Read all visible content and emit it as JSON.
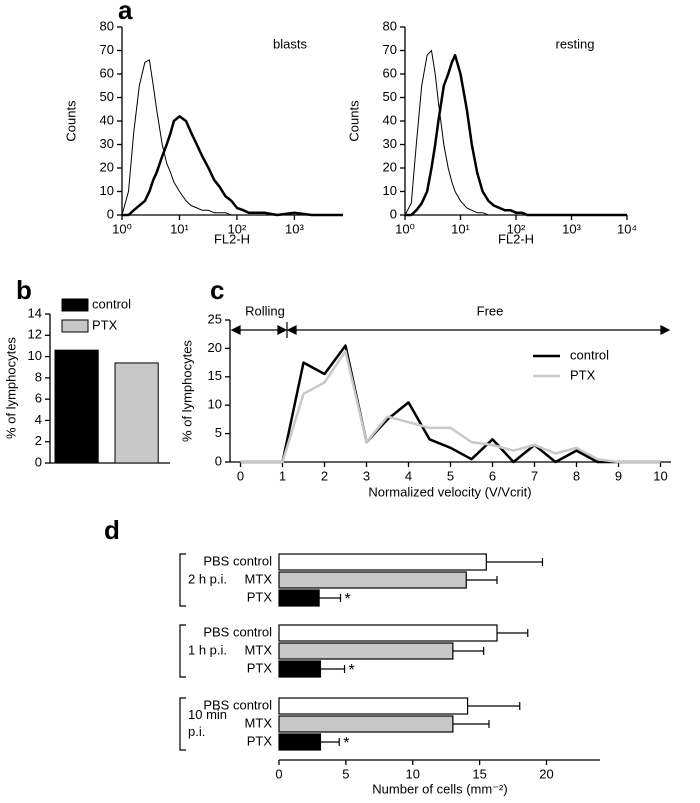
{
  "chart_data": [
    {
      "type": "line",
      "panel": "a",
      "title": "blasts",
      "xlabel": "FL2-H",
      "ylabel": "Counts",
      "log_x": true,
      "x": [
        1,
        1.3,
        1.6,
        2,
        2.5,
        3,
        3.5,
        4,
        5,
        6,
        7,
        8,
        10,
        13,
        16,
        20,
        25,
        32,
        40,
        50,
        63,
        80,
        100,
        130,
        160,
        200,
        300,
        500,
        1000,
        2000,
        7000
      ],
      "xlim": [
        1,
        7000
      ],
      "xticks": [
        {
          "value": 1,
          "label": "10⁰"
        },
        {
          "value": 10,
          "label": "10¹"
        },
        {
          "value": 100,
          "label": "10²"
        },
        {
          "value": 1000,
          "label": "10³"
        }
      ],
      "ylim": [
        0,
        80
      ],
      "yticks": [
        0,
        10,
        20,
        30,
        40,
        50,
        60,
        70,
        80
      ],
      "series": [
        {
          "color": "#000000",
          "line_width": 1,
          "values": [
            0,
            10,
            35,
            55,
            65,
            66,
            55,
            45,
            30,
            22,
            18,
            14,
            10,
            6,
            4,
            3,
            2,
            2,
            1,
            1,
            1,
            0,
            0,
            0,
            0,
            0,
            0,
            0,
            0,
            0,
            0
          ]
        },
        {
          "color": "#000000",
          "line_width": 2.5,
          "values": [
            0,
            0,
            2,
            4,
            6,
            10,
            15,
            18,
            25,
            30,
            35,
            40,
            42,
            40,
            35,
            30,
            25,
            20,
            15,
            12,
            8,
            6,
            3,
            2,
            1,
            1,
            1,
            0,
            1,
            0,
            0
          ]
        }
      ]
    },
    {
      "type": "line",
      "title": "resting",
      "xlabel": "FL2-H",
      "ylabel": "Counts",
      "log_x": true,
      "x": [
        1,
        1.3,
        1.6,
        2,
        2.5,
        3,
        3.5,
        4,
        5,
        6,
        7,
        8,
        10,
        13,
        16,
        20,
        25,
        32,
        40,
        50,
        63,
        80,
        100,
        130,
        160,
        200,
        300,
        500,
        1000,
        2000,
        10000
      ],
      "xlim": [
        1,
        10000
      ],
      "xticks": [
        {
          "value": 1,
          "label": "10⁰"
        },
        {
          "value": 10,
          "label": "10¹"
        },
        {
          "value": 100,
          "label": "10²"
        },
        {
          "value": 1000,
          "label": "10³"
        },
        {
          "value": 10000,
          "label": "10⁴"
        }
      ],
      "ylim": [
        0,
        80
      ],
      "yticks": [
        0,
        10,
        20,
        30,
        40,
        50,
        60,
        70,
        80
      ],
      "series": [
        {
          "color": "#000000",
          "line_width": 1,
          "values": [
            0,
            5,
            30,
            55,
            68,
            70,
            60,
            48,
            30,
            20,
            14,
            10,
            6,
            3,
            2,
            1,
            1,
            0,
            0,
            0,
            0,
            0,
            0,
            0,
            0,
            0,
            0,
            0,
            0,
            0,
            0
          ]
        },
        {
          "color": "#000000",
          "line_width": 2.5,
          "values": [
            0,
            0,
            2,
            5,
            10,
            20,
            30,
            40,
            55,
            60,
            65,
            68,
            60,
            45,
            30,
            18,
            10,
            6,
            4,
            3,
            2,
            2,
            1,
            1,
            0,
            0,
            0,
            0,
            0,
            0,
            0
          ]
        }
      ]
    },
    {
      "type": "bar",
      "panel": "b",
      "ylabel": "% of lymphocytes",
      "ylim": [
        0,
        14
      ],
      "yticks": [
        0,
        2,
        4,
        6,
        8,
        10,
        12,
        14
      ],
      "series": [
        {
          "name": "control",
          "color": "#000000",
          "values": [
            10.6
          ]
        },
        {
          "name": "PTX",
          "color": "#c8c8c8",
          "values": [
            9.4
          ]
        }
      ]
    },
    {
      "type": "line",
      "panel": "c",
      "ylabel": "% of lymphocytes",
      "xlabel": "Normalized velocity (V/Vcrit)",
      "annotations": [
        "Rolling",
        "Free"
      ],
      "legend": "right",
      "x": [
        0,
        1,
        1.5,
        2,
        2.5,
        3,
        3.5,
        4,
        4.5,
        5,
        5.5,
        6,
        6.5,
        7,
        7.5,
        8,
        8.5,
        9,
        10
      ],
      "xlim": [
        -0.25,
        10.25
      ],
      "xticks": [
        0,
        1,
        2,
        3,
        4,
        5,
        6,
        7,
        8,
        9,
        10
      ],
      "ylim": [
        0,
        25
      ],
      "yticks": [
        0,
        5,
        10,
        15,
        20,
        25
      ],
      "series": [
        {
          "name": "control",
          "color": "#000000",
          "line_width": 2.5,
          "values": [
            0,
            0,
            17.5,
            15.5,
            20.5,
            3.5,
            7.5,
            10.5,
            4,
            2.5,
            0.5,
            4,
            0,
            3,
            0,
            2,
            0,
            0,
            0
          ]
        },
        {
          "name": "PTX",
          "color": "#c8c8c8",
          "line_width": 2.5,
          "values": [
            0,
            0,
            12,
            14,
            19.5,
            3.5,
            8,
            7,
            6,
            6,
            3.5,
            3,
            2,
            3,
            1.5,
            2.5,
            0.5,
            0,
            0
          ]
        }
      ]
    },
    {
      "type": "hbar",
      "panel": "d",
      "xlabel": "Number of cells (mm⁻²)",
      "xlim": [
        0,
        24
      ],
      "xticks": [
        0,
        5,
        10,
        15,
        20
      ],
      "colors": [
        "#ffffff",
        "#c8c8c8",
        "#000000"
      ],
      "groups": [
        {
          "label": [
            "2 h p.i."
          ],
          "categories": [
            "PBS control",
            "MTX",
            "PTX"
          ],
          "values": [
            15.5,
            14,
            3
          ],
          "errors": [
            4.2,
            2.3,
            1.6
          ],
          "significance": "*"
        },
        {
          "label": [
            "1 h p.i."
          ],
          "categories": [
            "PBS control",
            "MTX",
            "PTX"
          ],
          "values": [
            16.3,
            13,
            3.1
          ],
          "errors": [
            2.3,
            2.3,
            1.8
          ],
          "significance": "*"
        },
        {
          "label": [
            "10 min",
            "p.i."
          ],
          "categories": [
            "PBS control",
            "MTX",
            "PTX"
          ],
          "values": [
            14.1,
            13,
            3.1
          ],
          "errors": [
            3.9,
            2.7,
            1.4
          ],
          "significance": "*"
        }
      ]
    }
  ]
}
